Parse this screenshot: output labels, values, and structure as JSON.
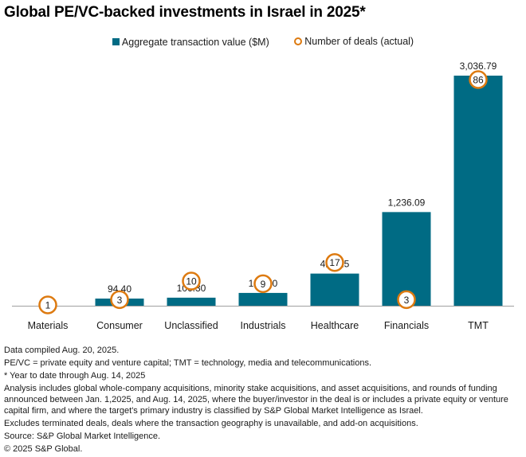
{
  "title": "Global PE/VC-backed investments in Israel in 2025*",
  "colors": {
    "bar": "#006b84",
    "deals": "#dd7a10",
    "axis": "#a0a0a0"
  },
  "chart_data": {
    "type": "bar",
    "title": "Global PE/VC-backed investments in Israel in 2025*",
    "xlabel": "",
    "ylabel": "",
    "categories": [
      "Materials",
      "Consumer",
      "Unclassified",
      "Industrials",
      "Healthcare",
      "Financials",
      "TMT"
    ],
    "series": [
      {
        "name": "Aggregate transaction value ($M)",
        "type": "bar",
        "values": [
          0,
          94.4,
          106.3,
          169.0,
          424.25,
          1236.09,
          3036.79
        ],
        "labels": [
          "",
          "94.40",
          "106.30",
          "169.00",
          "424.25",
          "1,236.09",
          "3,036.79"
        ]
      },
      {
        "name": "Number of deals (actual)",
        "type": "marker",
        "axis": "secondary",
        "values": [
          1,
          3,
          10,
          9,
          17,
          3,
          86
        ]
      }
    ],
    "ylim": [
      0,
      3036.79
    ],
    "y2lim": [
      0,
      86
    ],
    "grid": false,
    "legend": "top-center"
  },
  "legend": {
    "bar_label": "Aggregate transaction value ($M)",
    "deals_label": "Number of deals (actual)"
  },
  "footnotes": [
    "Data compiled Aug. 20, 2025.",
    "PE/VC = private equity and venture capital; TMT = technology, media and telecommunications.",
    "* Year to date through Aug. 14, 2025",
    "Analysis includes global whole-company acquisitions, minority stake acquisitions, and asset acquisitions, and rounds of funding announced between Jan. 1,2025, and Aug. 14, 2025, where the buyer/investor in the deal is or includes a private equity or venture capital firm, and where the target's primary industry is classified by S&P Global Market Intelligence as Israel.",
    "Excludes terminated deals,  deals where the transaction geography is unavailable, and add-on acquisitions.",
    "Source: S&P Global Market Intelligence.",
    "© 2025 S&P Global."
  ]
}
